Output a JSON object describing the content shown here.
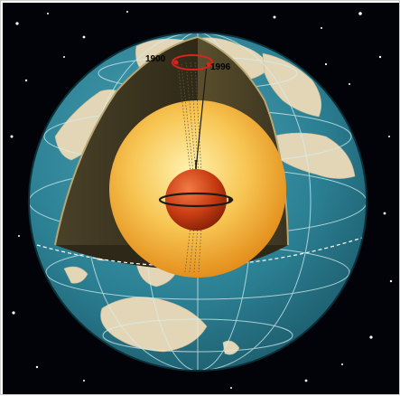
{
  "labels": {
    "year_start": "1900",
    "year_end": "1996"
  },
  "colors": {
    "space": "#020308",
    "ocean": "#2b7f92",
    "land": "#e2d6b6",
    "mantle": "#3b3521",
    "outer_core": "#f0b23a",
    "inner_core": "#c93d14",
    "axis_marker": "#d8241c"
  },
  "icons": {
    "axis_ring": "rotation-ring-icon"
  }
}
